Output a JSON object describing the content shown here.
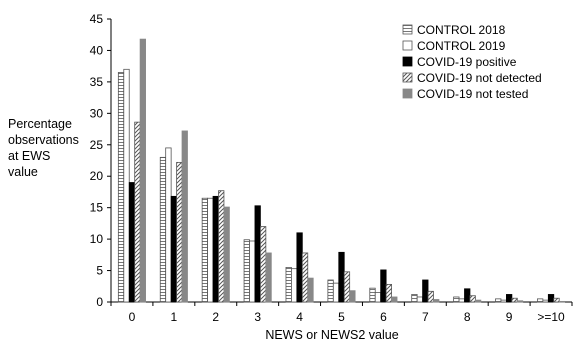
{
  "chart_data": {
    "type": "bar",
    "title": "",
    "ylabel_lines": [
      "Percentage",
      "observations",
      "at EWS",
      "value"
    ],
    "xlabel": "NEWS or NEWS2 value",
    "categories": [
      "0",
      "1",
      "2",
      "3",
      "4",
      "5",
      "6",
      "7",
      "8",
      "9",
      ">=10"
    ],
    "ylim": [
      0,
      45
    ],
    "yticks": [
      0,
      5,
      10,
      15,
      20,
      25,
      30,
      35,
      40,
      45
    ],
    "grid": false,
    "legend_position": "top-right",
    "series": [
      {
        "name": "CONTROL 2018",
        "pattern": "hstripes",
        "color": "#bbbbbb",
        "values": [
          36.5,
          23.0,
          16.5,
          9.9,
          5.5,
          3.5,
          2.2,
          1.2,
          0.8,
          0.5,
          0.5
        ]
      },
      {
        "name": "CONTROL 2019",
        "pattern": "none",
        "color": "#ffffff",
        "values": [
          37.0,
          24.5,
          16.5,
          9.7,
          5.3,
          3.0,
          1.5,
          0.8,
          0.5,
          0.3,
          0.3
        ]
      },
      {
        "name": "COVID-19 positive",
        "pattern": "solid",
        "color": "#000000",
        "values": [
          19.0,
          16.8,
          16.8,
          15.3,
          11.0,
          7.9,
          5.1,
          3.5,
          2.1,
          1.2,
          1.2
        ]
      },
      {
        "name": "COVID-19 not detected",
        "pattern": "diag",
        "color": "#555555",
        "values": [
          28.6,
          22.2,
          17.7,
          12.0,
          7.8,
          4.8,
          2.8,
          1.7,
          1.0,
          0.6,
          0.6
        ]
      },
      {
        "name": "COVID-19 not tested",
        "pattern": "solid",
        "color": "#888888",
        "values": [
          41.8,
          27.2,
          15.1,
          7.8,
          3.8,
          1.8,
          0.8,
          0.4,
          0.3,
          0.2,
          0.1
        ]
      }
    ]
  }
}
